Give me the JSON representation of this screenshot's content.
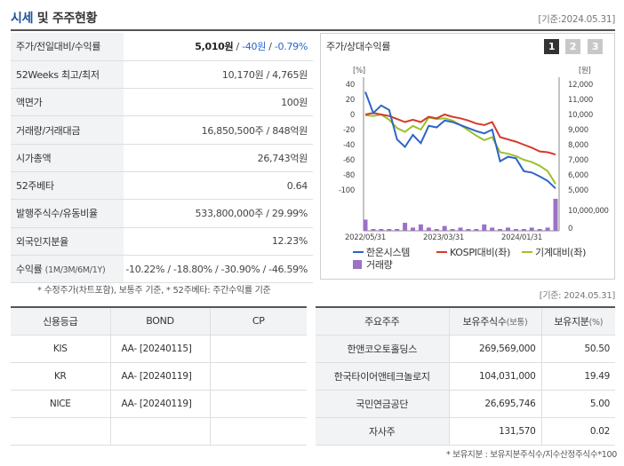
{
  "header": {
    "title_accent": "시세",
    "title_rest": " 및 주주현황",
    "date": "[기준:2024.05.31]"
  },
  "price_table": {
    "rows": [
      {
        "label": "주가/전일대비/수익률",
        "price": "5,010원",
        "sep1": " / ",
        "change": "-40원",
        "sep2": " / ",
        "rate": "-0.79%"
      },
      {
        "label": "52Weeks 최고/최저",
        "value": "10,170원 / 4,765원"
      },
      {
        "label": "액면가",
        "value": "100원"
      },
      {
        "label": "거래량/거래대금",
        "value": "16,850,500주 / 848억원"
      },
      {
        "label": "시가총액",
        "value": "26,743억원"
      },
      {
        "label": "52주베타",
        "value": "0.64"
      },
      {
        "label": "발행주식수/유동비율",
        "value": "533,800,000주 / 29.99%"
      },
      {
        "label": "외국인지분율",
        "value": "12.23%"
      },
      {
        "label": "수익률",
        "label_sub": "(1M/3M/6M/1Y)",
        "value": "-10.22% / -18.80% / -30.90% / -46.59%"
      }
    ]
  },
  "note1": "* 수정주가(차트포함), 보통주 기준, * 52주베타: 주간수익률 기준",
  "chart_panel": {
    "title": "주가/상대수익률",
    "pages": [
      "1",
      "2",
      "3"
    ]
  },
  "chart_data": {
    "type": "line",
    "left_axis_unit": "[%]",
    "right_axis_unit": "[원]",
    "left_ticks": [
      40,
      20,
      0,
      -20,
      -40,
      -60,
      -80,
      -100
    ],
    "right_ticks": [
      "12,000",
      "11,000",
      "10,000",
      "9,000",
      "8,000",
      "7,000",
      "6,000",
      "5,000"
    ],
    "volume_ticks": [
      "10,000,000",
      "0"
    ],
    "x_ticks": [
      "2022/05/31",
      "2023/03/31",
      "2024/01/31"
    ],
    "x": [
      0,
      1,
      2,
      3,
      4,
      5,
      6,
      7,
      8,
      9,
      10,
      11,
      12,
      13,
      14,
      15,
      16,
      17,
      18,
      19,
      20,
      21,
      22,
      23,
      24
    ],
    "series": [
      {
        "name": "한온시스템",
        "color": "#2d64c8",
        "values": [
          30,
          2,
          12,
          6,
          -33,
          -43,
          -27,
          -38,
          -15,
          -17,
          -8,
          -10,
          -14,
          -18,
          -22,
          -25,
          -20,
          -62,
          -56,
          -58,
          -75,
          -77,
          -82,
          -88,
          -98
        ]
      },
      {
        "name": "KOSPI대비(좌)",
        "color": "#d43a2a",
        "values": [
          0,
          2,
          0,
          -2,
          -6,
          -10,
          -7,
          -10,
          -3,
          -5,
          0,
          -3,
          -5,
          -8,
          -12,
          -14,
          -10,
          -30,
          -33,
          -36,
          -40,
          -44,
          -49,
          -50,
          -53
        ]
      },
      {
        "name": "기계대비(좌)",
        "color": "#9bc12c",
        "values": [
          -1,
          -2,
          0,
          -7,
          -18,
          -23,
          -15,
          -20,
          -4,
          -6,
          -5,
          -8,
          -14,
          -21,
          -28,
          -34,
          -30,
          -50,
          -52,
          -55,
          -60,
          -63,
          -68,
          -75,
          -92
        ]
      }
    ],
    "volume": {
      "name": "거래량",
      "color": "#9b72c8",
      "values": [
        0.35,
        0.05,
        0.05,
        0.05,
        0.05,
        0.25,
        0.1,
        0.2,
        0.1,
        0.05,
        0.15,
        0.05,
        0.1,
        0.05,
        0.05,
        0.2,
        0.1,
        0.05,
        0.1,
        0.05,
        0.05,
        0.1,
        0.05,
        0.1,
        1.0
      ]
    }
  },
  "date2": "[기준: 2024.05.31]",
  "credit": {
    "headers": [
      "신용등급",
      "BOND",
      "CP"
    ],
    "rows": [
      {
        "agency": "KIS",
        "bond": "AA-  [20240115]",
        "cp": ""
      },
      {
        "agency": "KR",
        "bond": "AA-  [20240119]",
        "cp": ""
      },
      {
        "agency": "NICE",
        "bond": "AA-  [20240119]",
        "cp": ""
      },
      {
        "agency": "",
        "bond": "",
        "cp": ""
      }
    ]
  },
  "holders": {
    "headers": {
      "name": "주요주주",
      "shares": "보유주식수",
      "shares_unit": "(보통)",
      "ratio": "보유지분",
      "ratio_unit": "(%)"
    },
    "rows": [
      {
        "name": "한앤코오토홀딩스",
        "shares": "269,569,000",
        "ratio": "50.50"
      },
      {
        "name": "한국타이어앤테크놀로지",
        "shares": "104,031,000",
        "ratio": "19.49"
      },
      {
        "name": "국민연금공단",
        "shares": "26,695,746",
        "ratio": "5.00"
      },
      {
        "name": "자사주",
        "shares": "131,570",
        "ratio": "0.02"
      }
    ]
  },
  "note2": "* 보유지분 : 보유지분주식수/지수산정주식수*100"
}
